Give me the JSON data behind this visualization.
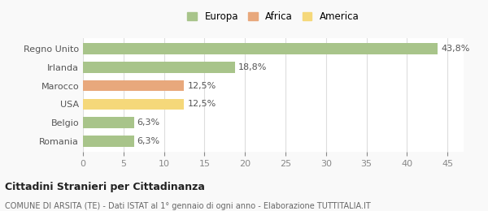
{
  "categories": [
    "Romania",
    "Belgio",
    "USA",
    "Marocco",
    "Irlanda",
    "Regno Unito"
  ],
  "values": [
    6.3,
    6.3,
    12.5,
    12.5,
    18.8,
    43.8
  ],
  "labels": [
    "6,3%",
    "6,3%",
    "12,5%",
    "12,5%",
    "18,8%",
    "43,8%"
  ],
  "colors": [
    "#a8c48a",
    "#a8c48a",
    "#f5d87a",
    "#e8a87c",
    "#a8c48a",
    "#a8c48a"
  ],
  "legend_items": [
    {
      "label": "Europa",
      "color": "#a8c48a"
    },
    {
      "label": "Africa",
      "color": "#e8a87c"
    },
    {
      "label": "America",
      "color": "#f5d87a"
    }
  ],
  "xlim": [
    0,
    47
  ],
  "xticks": [
    0,
    5,
    10,
    15,
    20,
    25,
    30,
    35,
    40,
    45
  ],
  "title": "Cittadini Stranieri per Cittadinanza",
  "subtitle": "COMUNE DI ARSITA (TE) - Dati ISTAT al 1° gennaio di ogni anno - Elaborazione TUTTITALIA.IT",
  "background_color": "#f9f9f9",
  "bar_background": "#ffffff",
  "grid_color": "#dddddd"
}
